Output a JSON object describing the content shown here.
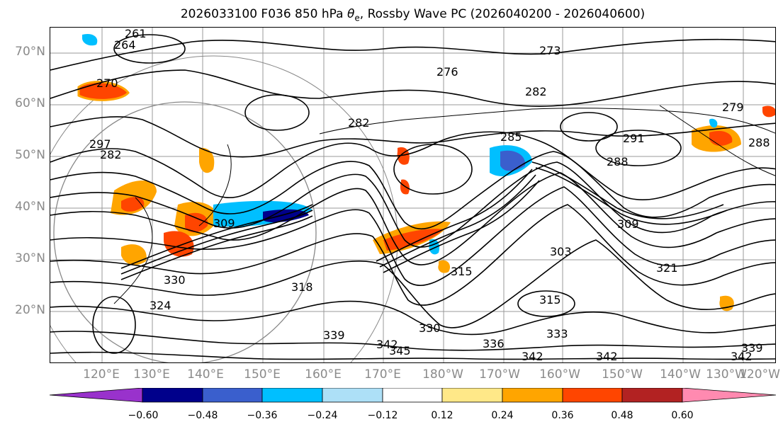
{
  "title": {
    "prefix": "2026033100 F036 850 hPa ",
    "theta": "θ",
    "sub": "e",
    "suffix": ", Rossby Wave PC (2026040200 - 2026040600)"
  },
  "lat_labels": [
    "70°N",
    "60°N",
    "50°N",
    "40°N",
    "30°N",
    "20°N"
  ],
  "lon_labels": [
    "120°E",
    "130°E",
    "140°E",
    "150°E",
    "160°E",
    "170°E",
    "180°W",
    "170°W",
    "160°W",
    "150°W",
    "140°W",
    "130°W",
    "120°W"
  ],
  "contour_labels": [
    "261",
    "264",
    "270",
    "273",
    "276",
    "279",
    "282",
    "282",
    "282",
    "285",
    "288",
    "288",
    "291",
    "297",
    "303",
    "309",
    "309",
    "315",
    "315",
    "318",
    "321",
    "324",
    "330",
    "330",
    "333",
    "336",
    "339",
    "339",
    "342",
    "342",
    "342",
    "342",
    "345"
  ],
  "colorbar": {
    "colors": [
      "#9932CC",
      "#00008B",
      "#3A5FCD",
      "#00BFFF",
      "#ADE0F7",
      "#FFFFFF",
      "#FFE888",
      "#FFA500",
      "#FF4500",
      "#B22222",
      "#FF8AB0"
    ],
    "tick_labels": [
      "−0.60",
      "−0.48",
      "−0.36",
      "−0.24",
      "−0.12",
      "0.12",
      "0.24",
      "0.36",
      "0.48",
      "0.60"
    ]
  },
  "colors": {
    "contour": "#000000",
    "grid": "#999999",
    "axis_label": "#8a8a8a"
  }
}
